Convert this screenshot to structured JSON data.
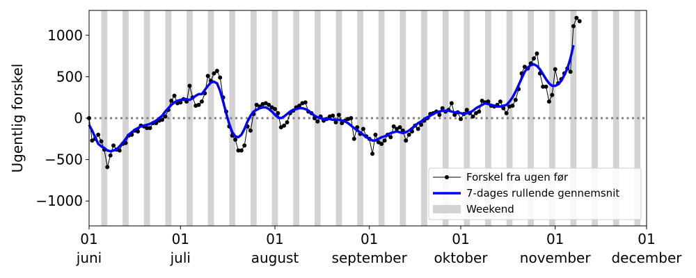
{
  "chart_data": {
    "type": "line",
    "ylabel": "Ugentlig forskel",
    "x": [
      "06-01",
      "06-02",
      "06-03",
      "06-04",
      "06-05",
      "06-06",
      "06-07",
      "06-08",
      "06-09",
      "06-10",
      "06-11",
      "06-12",
      "06-13",
      "06-14",
      "06-15",
      "06-16",
      "06-17",
      "06-18",
      "06-19",
      "06-20",
      "06-21",
      "06-22",
      "06-23",
      "06-24",
      "06-25",
      "06-26",
      "06-27",
      "06-28",
      "06-29",
      "06-30",
      "07-01",
      "07-02",
      "07-03",
      "07-04",
      "07-05",
      "07-06",
      "07-07",
      "07-08",
      "07-09",
      "07-10",
      "07-11",
      "07-12",
      "07-13",
      "07-14",
      "07-15",
      "07-16",
      "07-17",
      "07-18",
      "07-19",
      "07-20",
      "07-21",
      "07-22",
      "07-23",
      "07-24",
      "07-25",
      "07-26",
      "07-27",
      "07-28",
      "07-29",
      "07-30",
      "07-31",
      "08-01",
      "08-02",
      "08-03",
      "08-04",
      "08-05",
      "08-06",
      "08-07",
      "08-08",
      "08-09",
      "08-10",
      "08-11",
      "08-12",
      "08-13",
      "08-14",
      "08-15",
      "08-16",
      "08-17",
      "08-18",
      "08-19",
      "08-20",
      "08-21",
      "08-22",
      "08-23",
      "08-24",
      "08-25",
      "08-26",
      "08-27",
      "08-28",
      "08-29",
      "08-30",
      "08-31",
      "09-01",
      "09-02",
      "09-03",
      "09-04",
      "09-05",
      "09-06",
      "09-07",
      "09-08",
      "09-09",
      "09-10",
      "09-11",
      "09-12",
      "09-13",
      "09-14",
      "09-15",
      "09-16",
      "09-17",
      "09-18",
      "09-19",
      "09-20",
      "09-21",
      "09-22",
      "09-23",
      "09-24",
      "09-25",
      "09-26",
      "09-27",
      "09-28",
      "09-29",
      "09-30",
      "10-01",
      "10-02",
      "10-03",
      "10-04",
      "10-05",
      "10-06",
      "10-07",
      "10-08",
      "10-09",
      "10-10",
      "10-11",
      "10-12",
      "10-13",
      "10-14",
      "10-15",
      "10-16",
      "10-17",
      "10-18",
      "10-19",
      "10-20",
      "10-21",
      "10-22",
      "10-23",
      "10-24",
      "10-25",
      "10-26",
      "10-27",
      "10-28",
      "10-29",
      "10-30",
      "10-31",
      "11-01",
      "11-02",
      "11-03",
      "11-04",
      "11-05",
      "11-06",
      "11-07",
      "11-08",
      "11-09"
    ],
    "series": [
      {
        "name": "Forskel fra ugen før",
        "color": "#000000",
        "linewidth": 1,
        "marker": "o",
        "values": [
          0,
          -270,
          -250,
          -200,
          -280,
          -380,
          -590,
          -450,
          -330,
          -380,
          -390,
          -310,
          -300,
          -210,
          -200,
          -150,
          -160,
          -90,
          -100,
          -120,
          -120,
          -60,
          -60,
          -30,
          -20,
          20,
          100,
          210,
          270,
          180,
          190,
          230,
          200,
          390,
          250,
          150,
          160,
          200,
          300,
          510,
          450,
          540,
          570,
          490,
          250,
          80,
          -100,
          -210,
          -260,
          -390,
          -390,
          -330,
          -100,
          -150,
          50,
          160,
          140,
          170,
          180,
          160,
          130,
          110,
          60,
          -110,
          -90,
          -50,
          60,
          90,
          130,
          150,
          180,
          190,
          80,
          60,
          0,
          -40,
          20,
          -30,
          -10,
          20,
          30,
          -50,
          40,
          -60,
          -30,
          -10,
          0,
          -250,
          -110,
          -190,
          -130,
          -220,
          -250,
          -430,
          -200,
          -290,
          -310,
          -270,
          -200,
          -230,
          -100,
          -130,
          -110,
          -150,
          -270,
          -200,
          -160,
          -90,
          -130,
          -80,
          -30,
          0,
          50,
          60,
          80,
          40,
          120,
          80,
          100,
          180,
          40,
          70,
          -10,
          50,
          100,
          60,
          20,
          60,
          80,
          210,
          190,
          200,
          150,
          140,
          160,
          200,
          120,
          60,
          140,
          150,
          220,
          350,
          540,
          620,
          600,
          660,
          720,
          780,
          540,
          380,
          380,
          200,
          280,
          590,
          420,
          470,
          540,
          600,
          560,
          1110,
          1210,
          1170
        ]
      },
      {
        "name": "7-dages rullende gennemsnit",
        "color": "#0000ff",
        "linewidth": 3.5,
        "marker": null,
        "values": [
          -80,
          -150,
          -230,
          -310,
          -340,
          -360,
          -390,
          -400,
          -390,
          -380,
          -340,
          -300,
          -250,
          -200,
          -170,
          -140,
          -120,
          -100,
          -90,
          -80,
          -70,
          -50,
          -30,
          0,
          30,
          80,
          120,
          160,
          190,
          210,
          220,
          230,
          230,
          220,
          240,
          270,
          290,
          290,
          340,
          390,
          430,
          440,
          420,
          330,
          200,
          60,
          -70,
          -170,
          -220,
          -230,
          -200,
          -130,
          -40,
          30,
          80,
          100,
          120,
          130,
          130,
          110,
          80,
          40,
          10,
          0,
          20,
          50,
          80,
          100,
          110,
          120,
          120,
          110,
          90,
          60,
          30,
          10,
          0,
          -10,
          -10,
          -10,
          -20,
          -20,
          -20,
          -30,
          -40,
          -60,
          -90,
          -120,
          -150,
          -170,
          -200,
          -230,
          -250,
          -270,
          -270,
          -250,
          -230,
          -220,
          -200,
          -180,
          -170,
          -160,
          -170,
          -180,
          -170,
          -150,
          -120,
          -90,
          -60,
          -40,
          -10,
          10,
          30,
          50,
          70,
          80,
          90,
          90,
          90,
          80,
          70,
          70,
          60,
          50,
          60,
          70,
          90,
          120,
          140,
          160,
          180,
          170,
          160,
          150,
          140,
          140,
          150,
          160,
          200,
          250,
          320,
          400,
          480,
          560,
          610,
          640,
          650,
          630,
          590,
          530,
          470,
          420,
          390,
          390,
          410,
          450,
          520,
          600,
          720,
          880,
          null,
          null
        ]
      }
    ],
    "weekend_label": "Weekend",
    "weekend_color": "#d3d3d3",
    "weekends": [
      [
        "06-05",
        "06-07"
      ],
      [
        "06-12",
        "06-14"
      ],
      [
        "06-19",
        "06-21"
      ],
      [
        "06-26",
        "06-28"
      ],
      [
        "07-03",
        "07-05"
      ],
      [
        "07-10",
        "07-12"
      ],
      [
        "07-17",
        "07-19"
      ],
      [
        "07-24",
        "07-26"
      ],
      [
        "07-31",
        "08-02"
      ],
      [
        "08-07",
        "08-09"
      ],
      [
        "08-14",
        "08-16"
      ],
      [
        "08-21",
        "08-23"
      ],
      [
        "08-28",
        "08-30"
      ],
      [
        "09-04",
        "09-06"
      ],
      [
        "09-11",
        "09-13"
      ],
      [
        "09-18",
        "09-20"
      ],
      [
        "09-25",
        "09-27"
      ],
      [
        "10-02",
        "10-04"
      ],
      [
        "10-09",
        "10-11"
      ],
      [
        "10-16",
        "10-18"
      ],
      [
        "10-23",
        "10-25"
      ],
      [
        "10-30",
        "11-01"
      ],
      [
        "11-06",
        "11-08"
      ],
      [
        "11-13",
        "11-15"
      ],
      [
        "11-20",
        "11-22"
      ],
      [
        "11-27",
        "11-29"
      ]
    ],
    "reference_line": 0,
    "reference_color": "#808080",
    "xlim": [
      "06-01",
      "12-01"
    ],
    "xticks": [
      {
        "value": "06-01",
        "label": "01\njuni"
      },
      {
        "value": "07-01",
        "label": "01\njuli"
      },
      {
        "value": "08-01",
        "label": "01\naugust"
      },
      {
        "value": "09-01",
        "label": "01\nseptember"
      },
      {
        "value": "10-01",
        "label": "01\noktober"
      },
      {
        "value": "11-01",
        "label": "01\nnovember"
      },
      {
        "value": "12-01",
        "label": "01\ndecember"
      }
    ],
    "ylim": [
      -1300,
      1300
    ],
    "yticks": [
      {
        "value": -1000,
        "label": "−1000"
      },
      {
        "value": -500,
        "label": "−500"
      },
      0,
      500,
      1000
    ],
    "legend": "lower right",
    "grid": false
  }
}
